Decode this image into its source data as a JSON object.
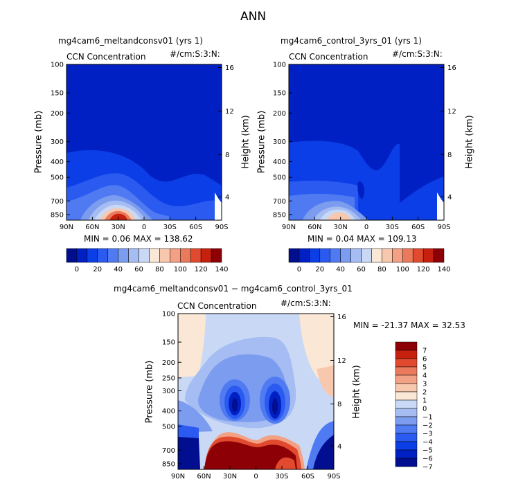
{
  "figure": {
    "title": "ANN"
  },
  "panels": {
    "p1": {
      "title": "mg4cam6_meltandconsv01 (yrs 1)",
      "field": "CCN Concentration",
      "units": "#/cm:S:3:N:",
      "ylabel": "Pressure (mb)",
      "ylabel_right": "Height (km)",
      "minmax": "MIN =   0.06   MAX = 138.62"
    },
    "p2": {
      "title": "mg4cam6_control_3yrs_01 (yrs 1)",
      "field": "CCN Concentration",
      "units": "#/cm:S:3:N:",
      "ylabel": "Pressure (mb)",
      "ylabel_right": "Height (km)",
      "minmax": "MIN =   0.04   MAX = 109.13"
    },
    "p3": {
      "title": "mg4cam6_meltandconsv01 − mg4cam6_control_3yrs_01",
      "field": "CCN Concentration",
      "units": "#/cm:S:3:N:",
      "ylabel": "Pressure (mb)",
      "ylabel_right": "Height (km)",
      "minmax": "MIN = -21.37   MAX =  32.53"
    }
  },
  "colors": {
    "abs_palette": [
      "#000e8f",
      "#0020c4",
      "#0b3ee6",
      "#2a5af0",
      "#4f7af2",
      "#7c9cf0",
      "#a5bdf2",
      "#c9d9f5",
      "#fbe7d6",
      "#f7c8ae",
      "#f2a184",
      "#eb7a5c",
      "#e14a2e",
      "#c8200e",
      "#8c0006"
    ],
    "diff_palette": [
      "#000e8f",
      "#0020c4",
      "#0b3ee6",
      "#2a5af0",
      "#4f7af2",
      "#7c9cf0",
      "#a5bdf2",
      "#c9d9f5",
      "#fbe7d6",
      "#f7c8ae",
      "#f2a184",
      "#eb7a5c",
      "#e14a2e",
      "#c8200e",
      "#8c0006"
    ]
  },
  "chart_data": [
    {
      "type": "heatmap",
      "title": "mg4cam6_meltandconsv01 (yrs 1)",
      "xlabel": "",
      "ylabel": "Pressure (mb)",
      "y2label": "Height (km)",
      "x_ticks": [
        "90N",
        "60N",
        "30N",
        "0",
        "30S",
        "60S",
        "90S"
      ],
      "y_ticks": [
        "100",
        "150",
        "200",
        "300",
        "400",
        "500",
        "700",
        "850"
      ],
      "y2_ticks": [
        "16",
        "12",
        "8",
        "4"
      ],
      "min": 0.06,
      "max": 138.62,
      "colorbar_ticks": [
        "0",
        "20",
        "40",
        "60",
        "80",
        "100",
        "120",
        "140"
      ],
      "regions": [
        {
          "description": "upper troposphere background",
          "approx_value": 5
        },
        {
          "description": "lower troposphere layer",
          "approx_value": 15
        },
        {
          "description": "boundary layer maximum near 30N, 850 mb",
          "approx_value": 130
        }
      ]
    },
    {
      "type": "heatmap",
      "title": "mg4cam6_control_3yrs_01 (yrs 1)",
      "xlabel": "",
      "ylabel": "Pressure (mb)",
      "y2label": "Height (km)",
      "x_ticks": [
        "90N",
        "60N",
        "30N",
        "0",
        "30S",
        "60S",
        "90S"
      ],
      "y_ticks": [
        "100",
        "150",
        "200",
        "300",
        "400",
        "500",
        "700",
        "850"
      ],
      "y2_ticks": [
        "16",
        "12",
        "8",
        "4"
      ],
      "min": 0.04,
      "max": 109.13,
      "colorbar_ticks": [
        "0",
        "20",
        "40",
        "60",
        "80",
        "100",
        "120",
        "140"
      ],
      "regions": [
        {
          "description": "upper troposphere background",
          "approx_value": 5
        },
        {
          "description": "mid troposphere layer below 300 mb",
          "approx_value": 10
        },
        {
          "description": "boundary layer maximum near 30N, 850 mb",
          "approx_value": 95
        }
      ]
    },
    {
      "type": "heatmap",
      "title": "mg4cam6_meltandconsv01 − mg4cam6_control_3yrs_01",
      "xlabel": "",
      "ylabel": "Pressure (mb)",
      "y2label": "Height (km)",
      "x_ticks": [
        "90N",
        "60N",
        "30N",
        "0",
        "30S",
        "60S",
        "90S"
      ],
      "y_ticks": [
        "100",
        "150",
        "200",
        "250",
        "300",
        "400",
        "500",
        "700",
        "850"
      ],
      "y2_ticks": [
        "16",
        "12",
        "8",
        "4"
      ],
      "min": -21.37,
      "max": 32.53,
      "colorbar_levels": [
        "7",
        "6",
        "5",
        "4",
        "3",
        "2",
        "1",
        "0",
        "−1",
        "−2",
        "−3",
        "−4",
        "−5",
        "−6",
        "−7"
      ],
      "regions": [
        {
          "description": "negative cores near 20N and 15S at 350–400 mb",
          "approx_value": -7
        },
        {
          "description": "positive boundary layer 45N–50S below 600 mb",
          "approx_value": 7
        },
        {
          "description": "negative boundary layer poleward of 60N and 60S",
          "approx_value": -7
        }
      ]
    }
  ]
}
